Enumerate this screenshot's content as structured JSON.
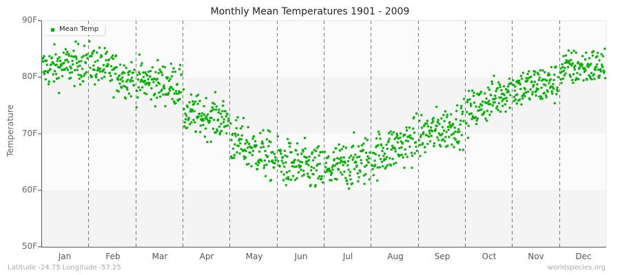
{
  "title": "Monthly Mean Temperatures 1901 - 2009",
  "footer": {
    "location": "Latitude -24.75 Longitude -57.25",
    "source": "worldspecies.org"
  },
  "legend": {
    "label": "Mean Temp"
  },
  "colors": {
    "point": "#00b400",
    "band_light": "#fbfbfb",
    "band_dark": "#f4f4f4",
    "gridline": "#777777"
  },
  "chart_data": {
    "type": "scatter",
    "title": "Monthly Mean Temperatures 1901 - 2009",
    "xlabel": "",
    "ylabel": "Temperature",
    "categories": [
      "Jan",
      "Feb",
      "Mar",
      "Apr",
      "May",
      "Jun",
      "Jul",
      "Aug",
      "Sep",
      "Oct",
      "Nov",
      "Dec"
    ],
    "yticks": [
      "50F",
      "60F",
      "70F",
      "80F",
      "90F"
    ],
    "ylim": [
      50,
      90
    ],
    "legend_position": "top-left",
    "series": [
      {
        "name": "Mean Temp",
        "points_per_month": 109,
        "monthly_start_mean": [
          81.5,
          82.5,
          79.5,
          73.5,
          69,
          65,
          63.5,
          66,
          69.5,
          73.5,
          78,
          81.5
        ],
        "monthly_end_mean": [
          82.5,
          79.5,
          78.5,
          72.5,
          65.5,
          63.5,
          65.5,
          69,
          72,
          78,
          79,
          82
        ],
        "monthly_spread": [
          2.2,
          2.2,
          2.3,
          2.2,
          2.6,
          2.6,
          2.7,
          2.5,
          2.4,
          2.2,
          2.2,
          2.0
        ],
        "observed_min": 56.5,
        "observed_max": 88
      }
    ]
  }
}
